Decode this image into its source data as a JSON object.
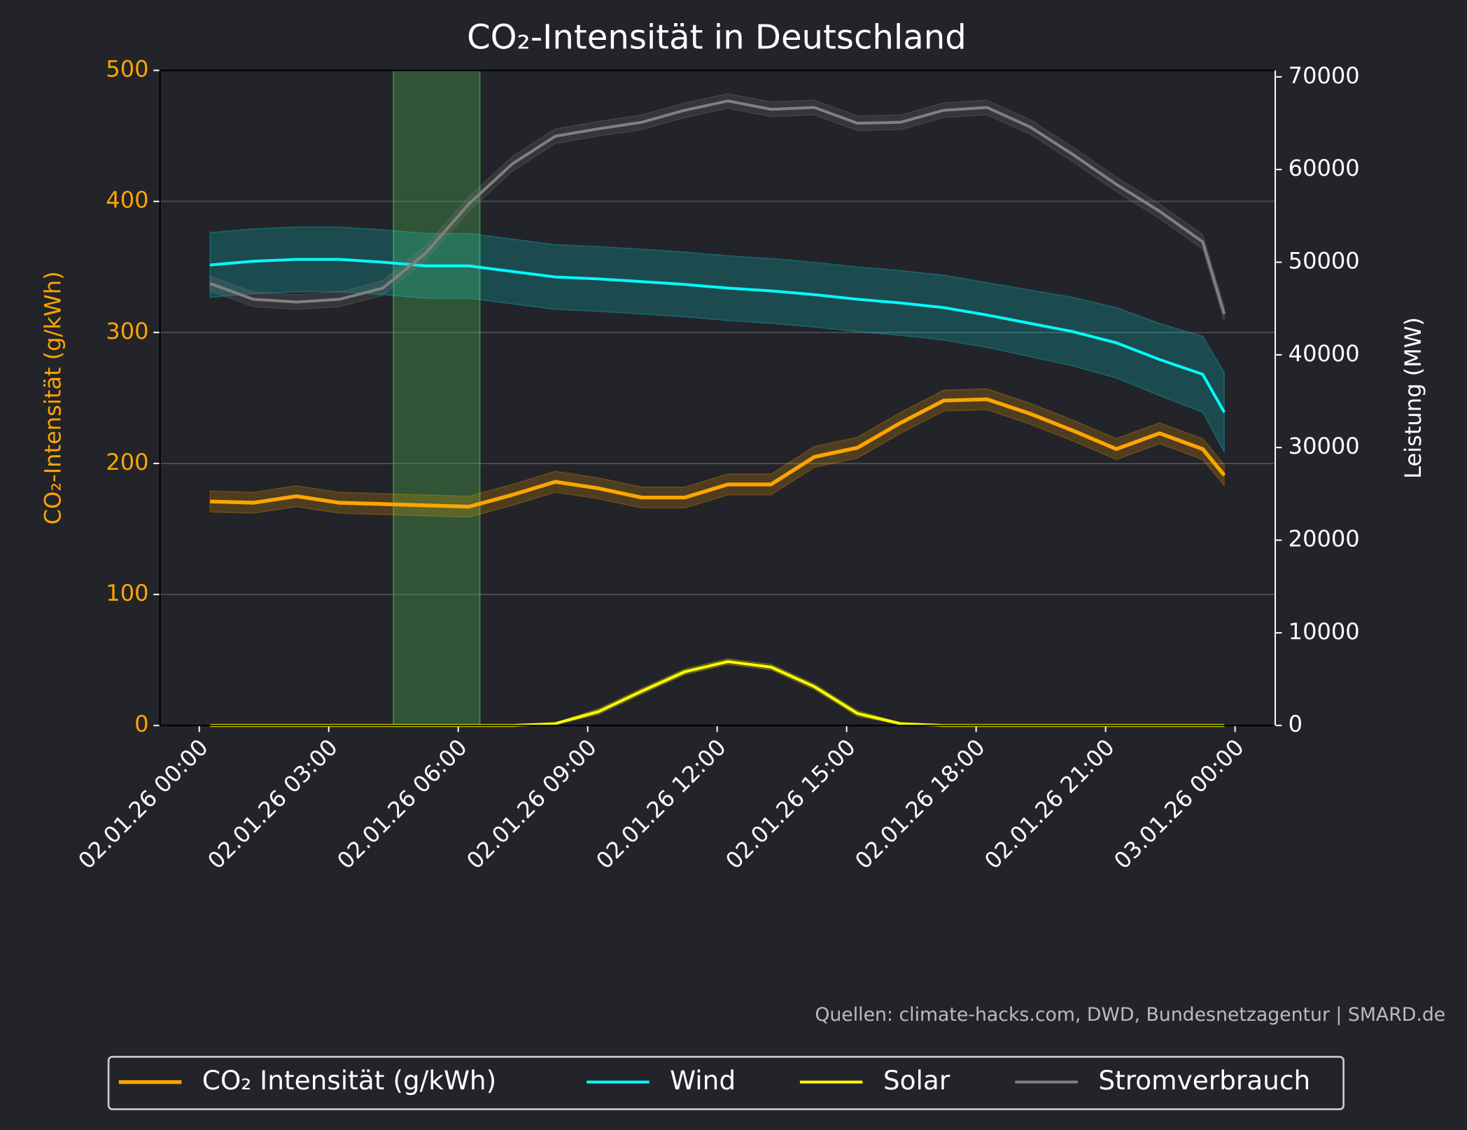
{
  "chart_data": {
    "type": "line",
    "title": "CO₂-Intensität in Deutschland",
    "ylabel": "CO₂-Intensität (g/kWh)",
    "y2label": "Leistung (MW)",
    "source": "Quellen: climate-hacks.com, DWD, Bundesnetzagentur | SMARD.de",
    "x": [
      0.25,
      1.25,
      2.25,
      3.25,
      4.25,
      5.25,
      6.25,
      7.25,
      8.25,
      9.25,
      10.25,
      11.25,
      12.25,
      13.25,
      14.25,
      15.25,
      16.25,
      17.25,
      18.25,
      19.25,
      20.25,
      21.25,
      22.25,
      23.25,
      23.75
    ],
    "xlim": [
      -0.91,
      24.93
    ],
    "xticks": [
      {
        "value": 0,
        "label": "02.01.26 00:00"
      },
      {
        "value": 3,
        "label": "02.01.26 03:00"
      },
      {
        "value": 6,
        "label": "02.01.26 06:00"
      },
      {
        "value": 9,
        "label": "02.01.26 09:00"
      },
      {
        "value": 12,
        "label": "02.01.26 12:00"
      },
      {
        "value": 15,
        "label": "02.01.26 15:00"
      },
      {
        "value": 18,
        "label": "02.01.26 18:00"
      },
      {
        "value": 21,
        "label": "02.01.26 21:00"
      },
      {
        "value": 24,
        "label": "03.01.26 00:00"
      }
    ],
    "ylim": [
      0,
      500
    ],
    "yticks": [
      0,
      100,
      200,
      300,
      400,
      500
    ],
    "y2lim": [
      0,
      70700
    ],
    "y2ticks": [
      0,
      10000,
      20000,
      30000,
      40000,
      50000,
      60000,
      70000
    ],
    "grid": true,
    "highlight": [
      4.5,
      6.5
    ],
    "series": [
      {
        "name": "CO₂ Intensität (g/kWh)",
        "color": "#ffa500",
        "axis": "y",
        "values": [
          171,
          170,
          175,
          170,
          169,
          168,
          167,
          176,
          186,
          181,
          174,
          174,
          184,
          184,
          205,
          212,
          231,
          248,
          249,
          238,
          225,
          211,
          223,
          211,
          191
        ],
        "errors": [
          8,
          8,
          8,
          8,
          8,
          8,
          8,
          8,
          8,
          8,
          8,
          8,
          8,
          8,
          8,
          8,
          8,
          8,
          8,
          8,
          8,
          8,
          8,
          8,
          8
        ]
      },
      {
        "name": "Wind",
        "color": "#00ffff",
        "axis": "y2",
        "values": [
          49700,
          50100,
          50300,
          50300,
          50000,
          49600,
          49600,
          49000,
          48400,
          48200,
          47900,
          47600,
          47200,
          46900,
          46500,
          46000,
          45600,
          45100,
          44300,
          43400,
          42500,
          41300,
          39500,
          37900,
          33800
        ],
        "errors": [
          3500,
          3500,
          3500,
          3500,
          3500,
          3500,
          3500,
          3500,
          3500,
          3500,
          3500,
          3500,
          3500,
          3500,
          3500,
          3500,
          3500,
          3500,
          3500,
          3600,
          3700,
          3800,
          3900,
          4100,
          4300
        ]
      },
      {
        "name": "Solar",
        "color": "#ffff00",
        "axis": "y2",
        "values": [
          0,
          0,
          0,
          0,
          0,
          0,
          0,
          0,
          200,
          1500,
          3700,
          5800,
          6900,
          6300,
          4200,
          1300,
          200,
          0,
          0,
          0,
          0,
          0,
          0,
          0,
          0
        ],
        "errors": [
          0,
          0,
          0,
          0,
          0,
          0,
          0,
          0,
          100,
          300,
          300,
          300,
          300,
          300,
          300,
          300,
          100,
          0,
          0,
          0,
          0,
          0,
          0,
          0,
          0
        ]
      },
      {
        "name": "Stromverbrauch",
        "color": "#808080",
        "axis": "y2",
        "values": [
          47700,
          46000,
          45700,
          46000,
          47200,
          51000,
          56300,
          60600,
          63600,
          64400,
          65100,
          66400,
          67400,
          66500,
          66700,
          65000,
          65100,
          66400,
          66700,
          64600,
          61600,
          58400,
          55500,
          52200,
          44400
        ],
        "errors": [
          800,
          800,
          800,
          800,
          800,
          800,
          800,
          800,
          800,
          800,
          800,
          800,
          800,
          800,
          800,
          800,
          800,
          800,
          800,
          800,
          800,
          800,
          800,
          800,
          800
        ]
      }
    ]
  }
}
